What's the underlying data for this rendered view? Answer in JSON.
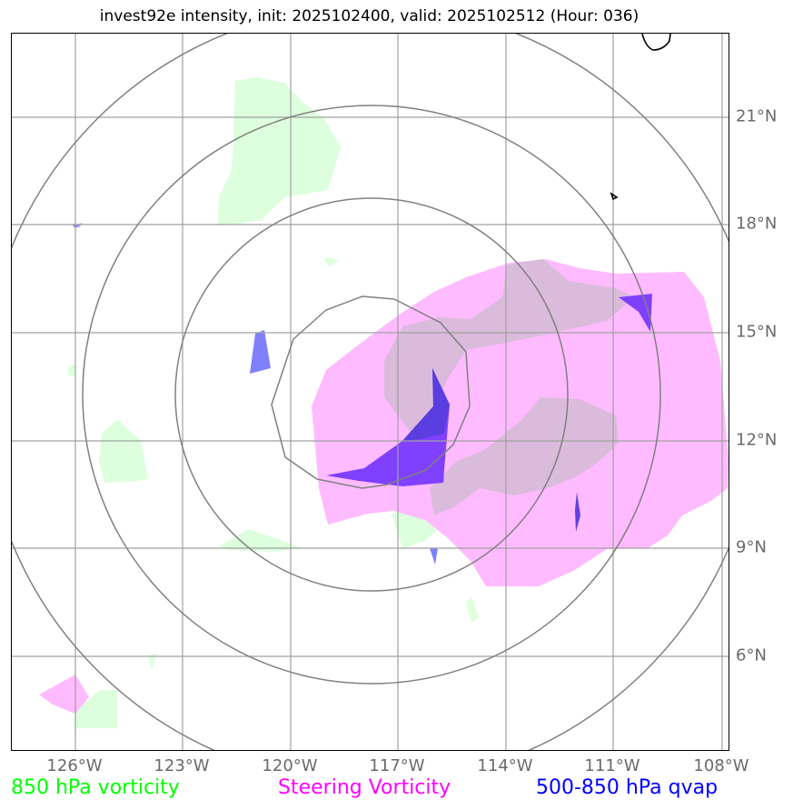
{
  "title": "invest92e intensity, init: 2025102400, valid: 2025102512 (Hour: 036)",
  "colors": {
    "vorticity_850": "#00ff00",
    "steering_vorticity": "#ff00ff",
    "qvap_500_850": "#0000ff",
    "gridline": "#a0a0a0",
    "range_ring": "#808080",
    "tick_label": "#6a6a6a",
    "coastline": "#000000"
  },
  "axes": {
    "lon_labels": [
      "126°W",
      "123°W",
      "120°W",
      "117°W",
      "114°W",
      "111°W",
      "108°W"
    ],
    "lat_labels": [
      "21°N",
      "18°N",
      "15°N",
      "12°N",
      "9°N",
      "6°N"
    ]
  },
  "legend": {
    "vorticity_850": "850 hPa vorticity",
    "steering_vorticity": "Steering Vorticity",
    "qvap": "500-850 hPa qvap"
  }
}
